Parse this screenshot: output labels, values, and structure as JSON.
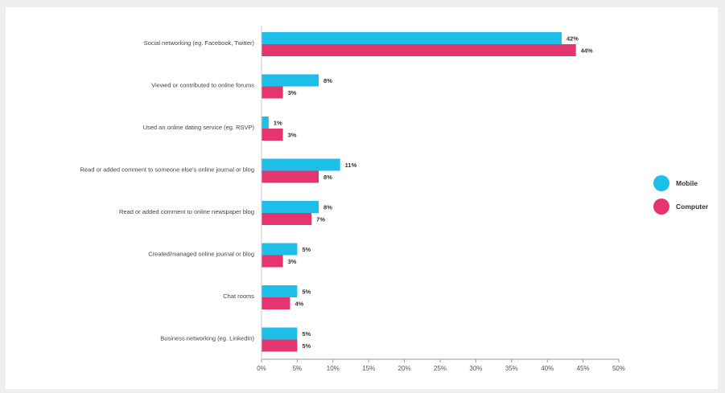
{
  "chart_data": {
    "type": "bar",
    "orientation": "horizontal",
    "categories": [
      "Social networking (eg. Facebook, Twitter)",
      "Viewed or contributed to online forums",
      "Used an online dating service (eg. RSVP)",
      "Read or added comment to someone else's online journal or blog",
      "Read or added comment to online newspaper blog",
      "Created/managed online journal or blog",
      "Chat rooms",
      "Business networking (eg. LinkedIn)"
    ],
    "series": [
      {
        "name": "Mobile",
        "color": "#1dbfe8",
        "values": [
          42,
          8,
          1,
          11,
          8,
          5,
          5,
          5
        ],
        "labels": [
          "42%",
          "8%",
          "1%",
          "11%",
          "8%",
          "5%",
          "5%",
          "5%"
        ]
      },
      {
        "name": "Computer",
        "color": "#e4356e",
        "values": [
          44,
          3,
          3,
          8,
          7,
          3,
          4,
          5
        ],
        "labels": [
          "44%",
          "3%",
          "3%",
          "8%",
          "7%",
          "3%",
          "4%",
          "5%"
        ]
      }
    ],
    "xlim": [
      0,
      50
    ],
    "xticks": [
      "0%",
      "5%",
      "10%",
      "15%",
      "20%",
      "25%",
      "30%",
      "35%",
      "40%",
      "45%",
      "50%"
    ],
    "legend_position": "right",
    "grid": false
  }
}
